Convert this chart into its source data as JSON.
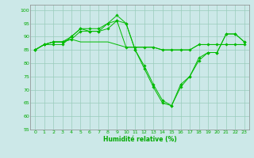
{
  "xlabel": "Humidité relative (%)",
  "bg_color": "#cce8e8",
  "grid_color": "#99ccbb",
  "line_color": "#00bb00",
  "marker_color": "#00bb00",
  "xlim": [
    -0.5,
    23.5
  ],
  "ylim": [
    55,
    102
  ],
  "yticks": [
    55,
    60,
    65,
    70,
    75,
    80,
    85,
    90,
    95,
    100
  ],
  "xticks": [
    0,
    1,
    2,
    3,
    4,
    5,
    6,
    7,
    8,
    9,
    10,
    11,
    12,
    13,
    14,
    15,
    16,
    17,
    18,
    19,
    20,
    21,
    22,
    23
  ],
  "series": [
    [
      85,
      87,
      87,
      87,
      90,
      93,
      93,
      93,
      95,
      96,
      95,
      85,
      79,
      72,
      66,
      64,
      72,
      75,
      82,
      84,
      84,
      91,
      91,
      88
    ],
    [
      85,
      87,
      88,
      88,
      90,
      93,
      92,
      92,
      95,
      98,
      95,
      85,
      78,
      71,
      65,
      64,
      71,
      75,
      81,
      84,
      84,
      91,
      91,
      88
    ],
    [
      85,
      87,
      88,
      88,
      89,
      92,
      92,
      92,
      93,
      96,
      86,
      86,
      86,
      86,
      85,
      85,
      85,
      85,
      87,
      87,
      87,
      87,
      87,
      87
    ],
    [
      85,
      87,
      88,
      88,
      89,
      88,
      88,
      88,
      88,
      87,
      86,
      86,
      86,
      86,
      85,
      85,
      85,
      85,
      87,
      87,
      87,
      87,
      87,
      87
    ]
  ],
  "series_markers": [
    true,
    true,
    true,
    false
  ],
  "tick_fontsize": 4.5,
  "xlabel_fontsize": 5.5
}
